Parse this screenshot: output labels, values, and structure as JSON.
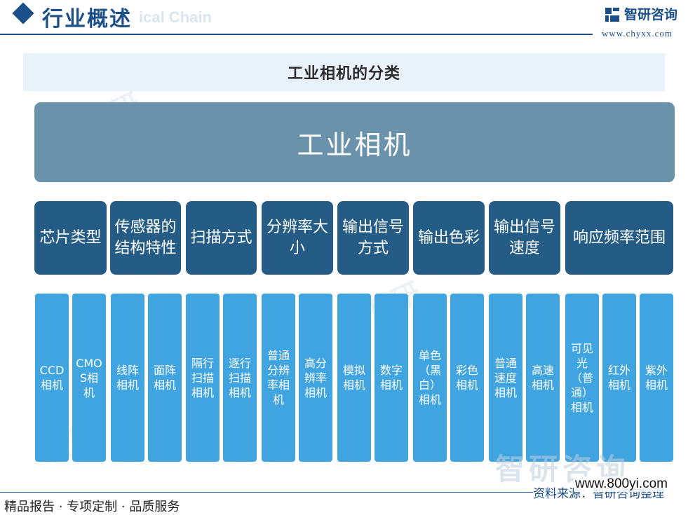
{
  "header": {
    "section_title": "行业概述",
    "section_ghost": "ical Chain",
    "logo_text": "智研咨询",
    "logo_url": "www.chyxx.com"
  },
  "diagram": {
    "title": "工业相机的分类",
    "root": "工业相机",
    "categories": [
      {
        "label": "芯片类型",
        "leaves": [
          "CCD相机",
          "CMOS相机"
        ]
      },
      {
        "label": "传感器的结构特性",
        "leaves": [
          "线阵相机",
          "面阵相机"
        ]
      },
      {
        "label": "扫描方式",
        "leaves": [
          "隔行扫描相机",
          "逐行扫描相机"
        ]
      },
      {
        "label": "分辨率大小",
        "leaves": [
          "普通分辨率相机",
          "高分辨率相机"
        ]
      },
      {
        "label": "输出信号方式",
        "leaves": [
          "模拟相机",
          "数字相机"
        ]
      },
      {
        "label": "输出色彩",
        "leaves": [
          "单色（黑白）相机",
          "彩色相机"
        ]
      },
      {
        "label": "输出信号速度",
        "leaves": [
          "普通速度相机",
          "高速相机"
        ]
      },
      {
        "label": "响应频率范围",
        "leaves": [
          "可见光（普通）相机",
          "红外相机",
          "紫外相机"
        ]
      }
    ]
  },
  "footer": {
    "tagline": "精品报告 · 专项定制 · 品质服务",
    "source": "资料来源：智研咨询整理",
    "watermark": "智研咨询",
    "watermark_url": "www.800yi.com"
  },
  "colors": {
    "brand": "#1b4f8a",
    "root_fill": "#6a93ab",
    "category_fill": "#245c85",
    "leaf_fill": "#3fa4e0",
    "title_band": "#e9f1fa"
  }
}
